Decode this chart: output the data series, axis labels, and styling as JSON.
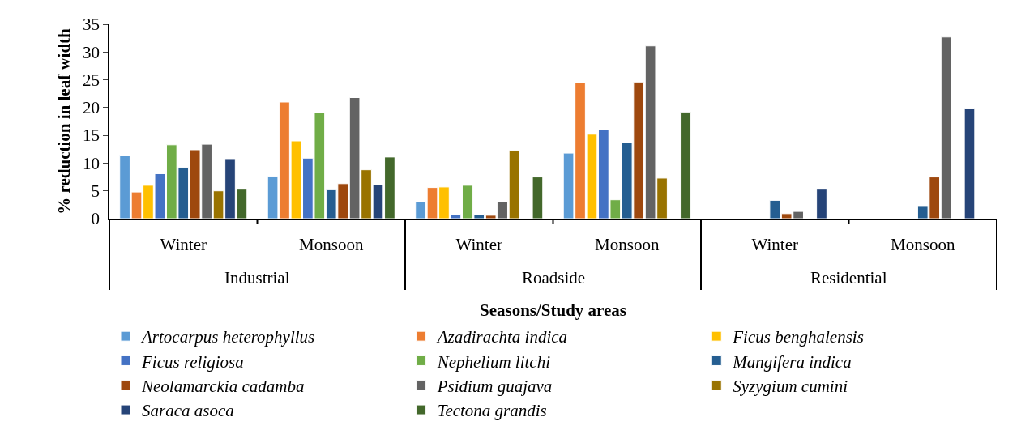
{
  "chart_data": {
    "type": "bar",
    "ylabel": "% reduction in leaf width",
    "xlabel": "Seasons/Study areas",
    "categories": [
      "Winter",
      "Monsoon",
      "Winter",
      "Monsoon",
      "Winter",
      "Monsoon"
    ],
    "annotations": [
      "Industrial",
      "Roadside",
      "Residential"
    ],
    "ylim": [
      0,
      35
    ],
    "yticks": [
      0,
      5,
      10,
      15,
      20,
      25,
      30,
      35
    ],
    "legend": "bottom",
    "series": [
      {
        "name": "Artocarpus heterophyllus",
        "color": "#5b9bd5",
        "values": [
          11.3,
          7.6,
          3.0,
          11.8,
          null,
          null
        ]
      },
      {
        "name": "Azadirachta indica",
        "color": "#ed7d31",
        "values": [
          4.8,
          21.0,
          5.6,
          24.5,
          null,
          null
        ]
      },
      {
        "name": "Ficus benghalensis",
        "color": "#ffc000",
        "values": [
          6.0,
          14.0,
          5.7,
          15.2,
          null,
          null
        ]
      },
      {
        "name": "Ficus religiosa",
        "color": "#4472c4",
        "values": [
          8.1,
          10.9,
          0.8,
          16.0,
          null,
          null
        ]
      },
      {
        "name": "Nephelium litchi",
        "color": "#70ad47",
        "values": [
          13.3,
          19.1,
          6.0,
          3.4,
          null,
          null
        ]
      },
      {
        "name": "Mangifera indica",
        "color": "#255e91",
        "values": [
          9.2,
          5.2,
          0.8,
          13.7,
          3.3,
          2.2
        ]
      },
      {
        "name": "Neolamarckia cadamba",
        "color": "#9e480e",
        "values": [
          12.4,
          6.3,
          0.6,
          24.6,
          0.9,
          7.5
        ]
      },
      {
        "name": "Psidium guajava",
        "color": "#636363",
        "values": [
          13.4,
          21.8,
          3.0,
          31.1,
          1.3,
          32.7
        ]
      },
      {
        "name": "Syzygium cumini",
        "color": "#997300",
        "values": [
          5.0,
          8.8,
          12.3,
          7.3,
          null,
          null
        ]
      },
      {
        "name": "Saraca asoca",
        "color": "#264478",
        "values": [
          10.8,
          6.1,
          null,
          null,
          5.3,
          19.9
        ]
      },
      {
        "name": "Tectona grandis",
        "color": "#43682b",
        "values": [
          5.3,
          11.1,
          7.5,
          19.2,
          null,
          null
        ]
      }
    ]
  }
}
